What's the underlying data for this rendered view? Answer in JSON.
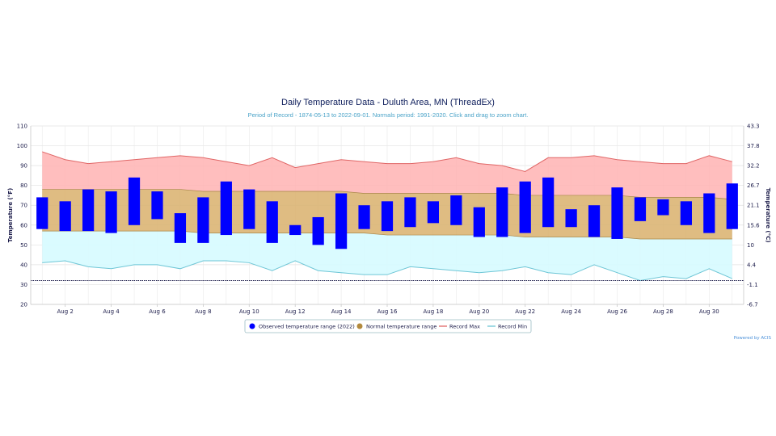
{
  "chart_data": {
    "type": "bar",
    "title": "Daily Temperature Data - Duluth Area, MN (ThreadEx)",
    "subtitle": "Period of Record - 1874-05-13 to 2022-09-01. Normals period: 1991-2020. Click and drag to zoom chart.",
    "ylabel_left": "Temperature (°F)",
    "ylabel_right": "Temperature (°C)",
    "ylim": [
      20,
      110
    ],
    "y_ticks_left": [
      "20",
      "30",
      "40",
      "50",
      "60",
      "70",
      "80",
      "90",
      "100",
      "110"
    ],
    "y_ticks_right": [
      "-6.7",
      "-1.1",
      "4.4",
      "10",
      "15.6",
      "21.1",
      "26.7",
      "32.2",
      "37.8",
      "43.3"
    ],
    "x_ticks": [
      "Aug 2",
      "Aug 4",
      "Aug 6",
      "Aug 8",
      "Aug 10",
      "Aug 12",
      "Aug 14",
      "Aug 16",
      "Aug 18",
      "Aug 20",
      "Aug 22",
      "Aug 24",
      "Aug 26",
      "Aug 28",
      "Aug 30"
    ],
    "x_tick_days": [
      2,
      4,
      6,
      8,
      10,
      12,
      14,
      16,
      18,
      20,
      22,
      24,
      26,
      28,
      30
    ],
    "days": [
      1,
      2,
      3,
      4,
      5,
      6,
      7,
      8,
      9,
      10,
      11,
      12,
      13,
      14,
      15,
      16,
      17,
      18,
      19,
      20,
      21,
      22,
      23,
      24,
      25,
      26,
      27,
      28,
      29,
      30,
      31
    ],
    "reference_line": 32,
    "series": [
      {
        "name": "Observed temperature range (2022)",
        "color": "#0000ff",
        "low": [
          58,
          57,
          57,
          56,
          60,
          63,
          51,
          51,
          55,
          58,
          51,
          55,
          50,
          48,
          58,
          57,
          59,
          61,
          60,
          54,
          54,
          56,
          59,
          59,
          54,
          53,
          62,
          65,
          60,
          56,
          58
        ],
        "high": [
          74,
          72,
          78,
          77,
          84,
          77,
          66,
          74,
          82,
          78,
          72,
          60,
          64,
          76,
          70,
          72,
          74,
          72,
          75,
          69,
          79,
          82,
          84,
          68,
          70,
          79,
          74,
          73,
          72,
          76,
          81
        ]
      },
      {
        "name": "Normal temperature range",
        "color": "#d2b06a",
        "low": [
          57,
          57,
          57,
          57,
          57,
          57,
          57,
          56,
          56,
          56,
          56,
          56,
          56,
          56,
          56,
          55,
          55,
          55,
          55,
          55,
          55,
          54,
          54,
          54,
          54,
          54,
          53,
          53,
          53,
          53,
          53
        ],
        "high": [
          78,
          78,
          78,
          78,
          78,
          78,
          78,
          77,
          77,
          77,
          77,
          77,
          77,
          77,
          76,
          76,
          76,
          76,
          76,
          76,
          76,
          75,
          75,
          75,
          75,
          75,
          74,
          74,
          74,
          74,
          73
        ]
      },
      {
        "name": "Record Max",
        "color": "#e06666",
        "values": [
          97,
          93,
          91,
          92,
          93,
          94,
          95,
          94,
          92,
          90,
          94,
          89,
          91,
          93,
          92,
          91,
          91,
          92,
          94,
          91,
          90,
          87,
          94,
          94,
          95,
          93,
          92,
          91,
          91,
          95,
          92
        ]
      },
      {
        "name": "Record Min",
        "color": "#6ec6d6",
        "values": [
          41,
          42,
          39,
          38,
          40,
          40,
          38,
          42,
          42,
          41,
          37,
          42,
          37,
          36,
          35,
          35,
          39,
          38,
          37,
          36,
          37,
          39,
          36,
          35,
          40,
          36,
          32,
          34,
          33,
          38,
          33
        ]
      }
    ],
    "legend_position": "bottom-center",
    "grid": true,
    "credit": "Powered by ACIS"
  }
}
